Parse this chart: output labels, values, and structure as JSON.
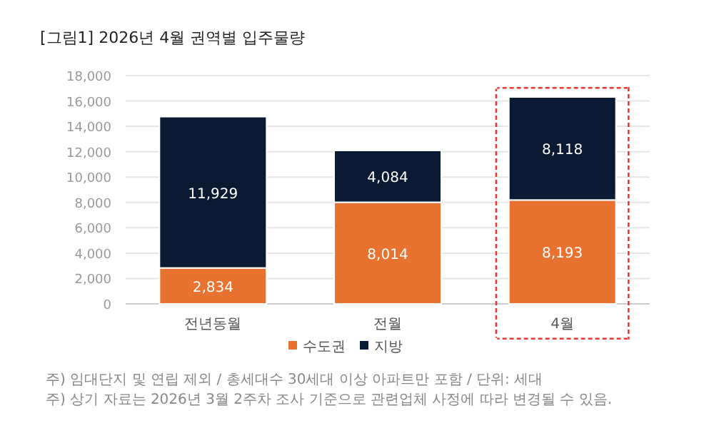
{
  "chart_data": {
    "type": "bar",
    "title": "[그림1] 2026년 4월 권역별 입주물량",
    "categories": [
      "전년동월",
      "전월",
      "4월"
    ],
    "series": [
      {
        "name": "수도권",
        "color": "#e8722f",
        "values": [
          2834,
          8014,
          8193
        ],
        "value_labels": [
          "2,834",
          "8,014",
          "8,193"
        ]
      },
      {
        "name": "지방",
        "color": "#0b1a33",
        "values": [
          11929,
          4084,
          8118
        ],
        "value_labels": [
          "11,929",
          "4,084",
          "8,118"
        ]
      }
    ],
    "stacked": true,
    "ylim": [
      0,
      18000
    ],
    "yticks": [
      0,
      {
        "value": 2000,
        "label": "2,000"
      },
      {
        "value": 4000,
        "label": "4,000"
      },
      {
        "value": 6000,
        "label": "6,000"
      },
      {
        "value": 8000,
        "label": "8,000"
      },
      {
        "value": 10000,
        "label": "10,000"
      },
      {
        "value": 12000,
        "label": "12,000"
      },
      {
        "value": 14000,
        "label": "14,000"
      },
      {
        "value": 16000,
        "label": "16,000"
      },
      {
        "value": 18000,
        "label": "18,000"
      }
    ],
    "grid": "y",
    "legend": "bottom",
    "annotations": [
      "주) 임대단지 및 연립 제외 / 총세대수 30세대 이상 아파트만 포함 / 단위: 세대",
      "주) 상기 자료는 2026년 3월 2주차 조사 기준으로 관련업체 사정에 따라 변경될 수 있음."
    ]
  }
}
